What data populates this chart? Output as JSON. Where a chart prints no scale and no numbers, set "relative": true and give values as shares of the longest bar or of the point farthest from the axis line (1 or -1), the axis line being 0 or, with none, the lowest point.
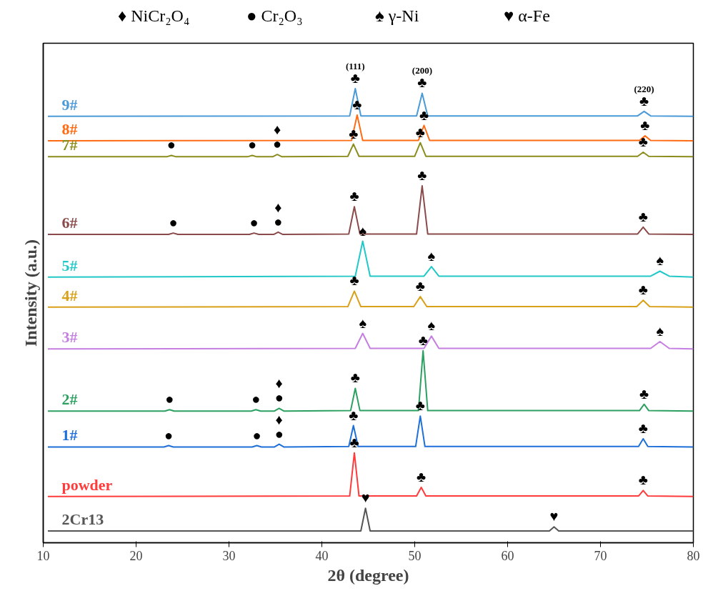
{
  "chart_data": {
    "type": "line",
    "relative": true,
    "xlabel": "2θ (degree)",
    "ylabel": "Intensity (a.u.)",
    "xlim": [
      10,
      80
    ],
    "xticks": [
      10,
      20,
      30,
      40,
      50,
      60,
      70,
      80
    ],
    "grid": false,
    "legend": false,
    "marker": "none",
    "line_style": "solid",
    "series": [
      {
        "name": "9#",
        "color": "#4a9ad8",
        "x": [
          10.5,
          43.0,
          43.6,
          44.2,
          50.2,
          50.8,
          51.4,
          74.0,
          74.7,
          75.4,
          80
        ],
        "values": [
          0.939,
          0.94,
          1.0,
          0.94,
          0.94,
          0.99,
          0.94,
          0.94,
          0.95,
          0.94,
          0.939
        ]
      },
      {
        "name": "8#",
        "color": "#ff6a13",
        "x": [
          10.5,
          43.2,
          43.8,
          44.4,
          50.4,
          51.0,
          51.6,
          74.2,
          74.8,
          75.4,
          80
        ],
        "values": [
          0.885,
          0.886,
          0.942,
          0.886,
          0.886,
          0.919,
          0.886,
          0.886,
          0.896,
          0.886,
          0.885
        ]
      },
      {
        "name": "7#",
        "color": "#8c8c1c",
        "x": [
          10.5,
          23.3,
          23.8,
          24.3,
          32.0,
          32.5,
          33.0,
          34.7,
          35.2,
          35.7,
          42.8,
          43.4,
          44.0,
          50.0,
          50.6,
          51.2,
          74.0,
          74.6,
          75.2,
          80
        ],
        "values": [
          0.85,
          0.85,
          0.853,
          0.85,
          0.85,
          0.853,
          0.85,
          0.85,
          0.855,
          0.85,
          0.851,
          0.878,
          0.851,
          0.851,
          0.881,
          0.851,
          0.851,
          0.86,
          0.851,
          0.85
        ]
      },
      {
        "name": "6#",
        "color": "#8b4a4a",
        "x": [
          10.5,
          23.5,
          24.0,
          24.5,
          32.2,
          32.7,
          33.2,
          34.8,
          35.3,
          35.8,
          42.9,
          43.5,
          44.1,
          50.2,
          50.8,
          51.4,
          74.0,
          74.6,
          75.2,
          80
        ],
        "values": [
          0.679,
          0.679,
          0.682,
          0.679,
          0.679,
          0.682,
          0.679,
          0.679,
          0.684,
          0.679,
          0.68,
          0.74,
          0.68,
          0.68,
          0.786,
          0.68,
          0.68,
          0.695,
          0.68,
          0.679
        ]
      },
      {
        "name": "5#",
        "color": "#22c8c8",
        "x": [
          10.5,
          43.6,
          44.4,
          45.2,
          51.0,
          51.8,
          52.6,
          75.4,
          76.4,
          77.4,
          80
        ],
        "values": [
          0.585,
          0.587,
          0.664,
          0.587,
          0.587,
          0.608,
          0.587,
          0.587,
          0.598,
          0.587,
          0.585
        ]
      },
      {
        "name": "4#",
        "color": "#d9a01a",
        "x": [
          10.5,
          42.8,
          43.5,
          44.2,
          49.9,
          50.6,
          51.3,
          73.9,
          74.6,
          75.3,
          80
        ],
        "values": [
          0.519,
          0.52,
          0.554,
          0.52,
          0.52,
          0.542,
          0.52,
          0.52,
          0.534,
          0.52,
          0.519
        ]
      },
      {
        "name": "3#",
        "color": "#c57fe0",
        "x": [
          10.5,
          43.6,
          44.4,
          45.2,
          51.0,
          51.8,
          52.6,
          75.4,
          76.4,
          77.4,
          80
        ],
        "values": [
          0.427,
          0.428,
          0.461,
          0.428,
          0.428,
          0.455,
          0.428,
          0.428,
          0.443,
          0.428,
          0.427
        ]
      },
      {
        "name": "2#",
        "color": "#2ca060",
        "x": [
          10.5,
          23.1,
          23.6,
          24.1,
          32.4,
          32.9,
          33.4,
          34.9,
          35.4,
          35.9,
          43.1,
          43.6,
          44.1,
          50.4,
          50.9,
          51.4,
          74.2,
          74.7,
          75.2,
          80
        ],
        "values": [
          0.29,
          0.29,
          0.293,
          0.29,
          0.29,
          0.293,
          0.29,
          0.29,
          0.296,
          0.29,
          0.291,
          0.34,
          0.291,
          0.291,
          0.423,
          0.291,
          0.291,
          0.305,
          0.291,
          0.29
        ]
      },
      {
        "name": "1#",
        "color": "#1f6fd8",
        "x": [
          10.5,
          23.0,
          23.5,
          24.0,
          32.5,
          33.0,
          33.5,
          34.9,
          35.4,
          35.9,
          42.9,
          43.4,
          43.9,
          50.1,
          50.6,
          51.1,
          74.1,
          74.6,
          75.1,
          80
        ],
        "values": [
          0.211,
          0.211,
          0.214,
          0.211,
          0.211,
          0.214,
          0.211,
          0.211,
          0.217,
          0.211,
          0.212,
          0.258,
          0.212,
          0.212,
          0.279,
          0.212,
          0.212,
          0.229,
          0.212,
          0.211
        ]
      },
      {
        "name": "powder",
        "color": "#ff3b3b",
        "x": [
          10.5,
          43.0,
          43.5,
          44.0,
          50.2,
          50.7,
          51.2,
          74.1,
          74.6,
          75.1,
          80
        ],
        "values": [
          0.102,
          0.103,
          0.198,
          0.103,
          0.103,
          0.122,
          0.103,
          0.103,
          0.115,
          0.103,
          0.102
        ]
      },
      {
        "name": "2Cr13",
        "color": "#555555",
        "x": [
          10.5,
          44.2,
          44.7,
          45.2,
          64.5,
          65.0,
          65.5,
          80
        ],
        "values": [
          0.026,
          0.026,
          0.076,
          0.026,
          0.026,
          0.035,
          0.026,
          0.026
        ]
      }
    ],
    "annotations": [
      "♦ NiCr₂O₄",
      "● Cr₂O₃",
      "♠ γ-Ni",
      "♥ α-Fe",
      {
        "text": "♣",
        "x": 43.6,
        "y": 1.0
      },
      {
        "text": "(111)",
        "x": 43.6,
        "y": 1.0
      },
      {
        "text": "♣",
        "x": 50.8,
        "y": 0.99
      },
      {
        "text": "(200)",
        "x": 50.8,
        "y": 0.99
      },
      {
        "text": "♣",
        "x": 74.7,
        "y": 0.95
      },
      {
        "text": "(220)",
        "x": 74.7,
        "y": 0.95
      },
      {
        "text": "♣",
        "x": 43.8,
        "y": 0.942
      },
      {
        "text": "♣",
        "x": 51.0,
        "y": 0.919
      },
      {
        "text": "♣",
        "x": 74.8,
        "y": 0.896
      },
      {
        "text": "●",
        "x": 23.8,
        "y": 0.853
      },
      {
        "text": "●",
        "x": 32.5,
        "y": 0.853
      },
      {
        "text": "●",
        "x": 35.2,
        "y": 0.855
      },
      {
        "text": "♦",
        "x": 35.2,
        "y": 0.855
      },
      {
        "text": "♣",
        "x": 43.4,
        "y": 0.878
      },
      {
        "text": "♣",
        "x": 50.6,
        "y": 0.881
      },
      {
        "text": "♣",
        "x": 74.6,
        "y": 0.86
      },
      {
        "text": "●",
        "x": 24.0,
        "y": 0.682
      },
      {
        "text": "●",
        "x": 32.7,
        "y": 0.682
      },
      {
        "text": "●",
        "x": 35.3,
        "y": 0.684
      },
      {
        "text": "♦",
        "x": 35.3,
        "y": 0.684
      },
      {
        "text": "♣",
        "x": 43.5,
        "y": 0.74
      },
      {
        "text": "♣",
        "x": 50.8,
        "y": 0.786
      },
      {
        "text": "♣",
        "x": 74.6,
        "y": 0.695
      },
      {
        "text": "♠",
        "x": 44.4,
        "y": 0.664
      },
      {
        "text": "♠",
        "x": 51.8,
        "y": 0.608
      },
      {
        "text": "♠",
        "x": 76.4,
        "y": 0.598
      },
      {
        "text": "♣",
        "x": 43.5,
        "y": 0.554
      },
      {
        "text": "♣",
        "x": 50.6,
        "y": 0.542
      },
      {
        "text": "♣",
        "x": 74.6,
        "y": 0.534
      },
      {
        "text": "♠",
        "x": 44.4,
        "y": 0.461
      },
      {
        "text": "♠",
        "x": 51.8,
        "y": 0.455
      },
      {
        "text": "♠",
        "x": 76.4,
        "y": 0.443
      },
      {
        "text": "●",
        "x": 23.6,
        "y": 0.293
      },
      {
        "text": "●",
        "x": 32.9,
        "y": 0.293
      },
      {
        "text": "●",
        "x": 35.4,
        "y": 0.296
      },
      {
        "text": "♦",
        "x": 35.4,
        "y": 0.296
      },
      {
        "text": "♣",
        "x": 43.6,
        "y": 0.34
      },
      {
        "text": "♣",
        "x": 50.9,
        "y": 0.423
      },
      {
        "text": "♣",
        "x": 74.7,
        "y": 0.305
      },
      {
        "text": "●",
        "x": 23.5,
        "y": 0.214
      },
      {
        "text": "●",
        "x": 33.0,
        "y": 0.214
      },
      {
        "text": "●",
        "x": 35.4,
        "y": 0.217
      },
      {
        "text": "♦",
        "x": 35.4,
        "y": 0.217
      },
      {
        "text": "♣",
        "x": 43.4,
        "y": 0.258
      },
      {
        "text": "♣",
        "x": 50.6,
        "y": 0.279
      },
      {
        "text": "♣",
        "x": 74.6,
        "y": 0.229
      },
      {
        "text": "♣",
        "x": 43.5,
        "y": 0.198
      },
      {
        "text": "♣",
        "x": 50.7,
        "y": 0.122
      },
      {
        "text": "♣",
        "x": 74.6,
        "y": 0.115
      },
      {
        "text": "♥",
        "x": 44.7,
        "y": 0.076
      },
      {
        "text": "♥",
        "x": 65.0,
        "y": 0.035
      }
    ]
  }
}
